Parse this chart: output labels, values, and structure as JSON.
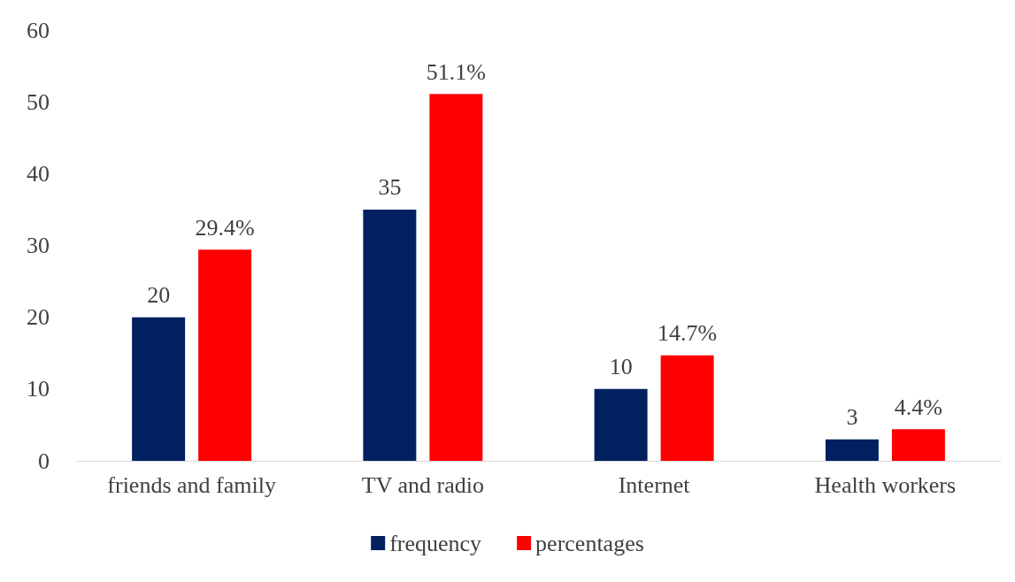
{
  "chart_data": {
    "type": "bar",
    "categories": [
      "friends and family",
      "TV and radio",
      "Internet",
      "Health workers"
    ],
    "series": [
      {
        "name": "frequency",
        "color": "#002060",
        "values": [
          20,
          35,
          10,
          3
        ],
        "value_labels": [
          "20",
          "35",
          "10",
          "3"
        ]
      },
      {
        "name": "percentages",
        "color": "#ff0000",
        "values": [
          29.4,
          51.1,
          14.7,
          4.4
        ],
        "value_labels": [
          "29.4%",
          "51.1%",
          "14.7%",
          "4.4%"
        ]
      }
    ],
    "ylim": [
      0,
      60
    ],
    "yticks": [
      0,
      10,
      20,
      30,
      40,
      50,
      60
    ],
    "grid": false,
    "legend": "bottom"
  }
}
